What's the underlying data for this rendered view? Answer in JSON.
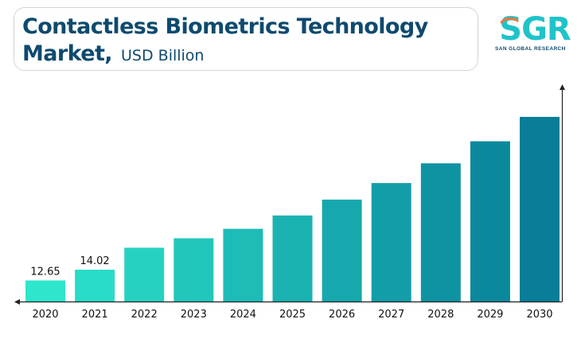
{
  "header": {
    "title_line1": "Contactless Biometrics Technology",
    "title_line2": "Market,",
    "title_unit": "USD Billion"
  },
  "logo": {
    "letters": "SGR",
    "name": "SAN GLOBAL RESEARCH",
    "colors": [
      "#1fc3c8",
      "#f2763a"
    ]
  },
  "chart_data": {
    "type": "bar",
    "categories": [
      "2020",
      "2021",
      "2022",
      "2023",
      "2024",
      "2025",
      "2026",
      "2027",
      "2028",
      "2029",
      "2030"
    ],
    "values": [
      12.65,
      14.02,
      16.8,
      18.0,
      19.2,
      20.9,
      22.9,
      25.0,
      27.5,
      30.3,
      33.4
    ],
    "data_labels": [
      "12.65",
      "14.02",
      "",
      "",
      "",
      "",
      "",
      "",
      "",
      "",
      ""
    ],
    "ylim": [
      9.98,
      35.0
    ],
    "xlabel": "",
    "ylabel": "",
    "grid": false,
    "colors": {
      "start": "#2de6cc",
      "end": "#087e98",
      "axis": "#222222",
      "text": "#111111"
    }
  }
}
